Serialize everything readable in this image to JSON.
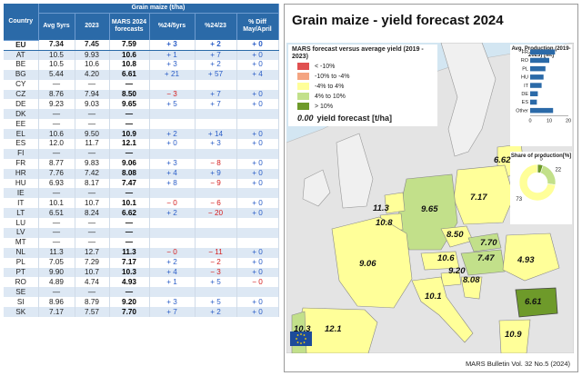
{
  "table": {
    "header_group": "Grain maize (t/ha)",
    "columns": [
      "Country",
      "Avg 5yrs",
      "2023",
      "MARS 2024 forecasts",
      "%24/5yrs",
      "%24/23",
      "% Diff May/April"
    ],
    "rows": [
      {
        "c": "EU",
        "avg": "7.34",
        "y23": "7.45",
        "f": "7.59",
        "p5": "+ 3",
        "p23": "+ 2",
        "d": "+ 0"
      },
      {
        "c": "AT",
        "avg": "10.5",
        "y23": "9.93",
        "f": "10.6",
        "p5": "+ 1",
        "p23": "+ 7",
        "d": "+ 0"
      },
      {
        "c": "BE",
        "avg": "10.5",
        "y23": "10.6",
        "f": "10.8",
        "p5": "+ 3",
        "p23": "+ 2",
        "d": "+ 0"
      },
      {
        "c": "BG",
        "avg": "5.44",
        "y23": "4.20",
        "f": "6.61",
        "p5": "+ 21",
        "p23": "+ 57",
        "d": "+ 4"
      },
      {
        "c": "CY",
        "avg": "—",
        "y23": "—",
        "f": "—",
        "p5": "",
        "p23": "",
        "d": ""
      },
      {
        "c": "CZ",
        "avg": "8.76",
        "y23": "7.94",
        "f": "8.50",
        "p5": "− 3",
        "p23": "+ 7",
        "d": "+ 0"
      },
      {
        "c": "DE",
        "avg": "9.23",
        "y23": "9.03",
        "f": "9.65",
        "p5": "+ 5",
        "p23": "+ 7",
        "d": "+ 0"
      },
      {
        "c": "DK",
        "avg": "—",
        "y23": "—",
        "f": "—",
        "p5": "",
        "p23": "",
        "d": ""
      },
      {
        "c": "EE",
        "avg": "—",
        "y23": "—",
        "f": "—",
        "p5": "",
        "p23": "",
        "d": ""
      },
      {
        "c": "EL",
        "avg": "10.6",
        "y23": "9.50",
        "f": "10.9",
        "p5": "+ 2",
        "p23": "+ 14",
        "d": "+ 0"
      },
      {
        "c": "ES",
        "avg": "12.0",
        "y23": "11.7",
        "f": "12.1",
        "p5": "+ 0",
        "p23": "+ 3",
        "d": "+ 0"
      },
      {
        "c": "FI",
        "avg": "—",
        "y23": "—",
        "f": "—",
        "p5": "",
        "p23": "",
        "d": ""
      },
      {
        "c": "FR",
        "avg": "8.77",
        "y23": "9.83",
        "f": "9.06",
        "p5": "+ 3",
        "p23": "− 8",
        "d": "+ 0"
      },
      {
        "c": "HR",
        "avg": "7.76",
        "y23": "7.42",
        "f": "8.08",
        "p5": "+ 4",
        "p23": "+ 9",
        "d": "+ 0"
      },
      {
        "c": "HU",
        "avg": "6.93",
        "y23": "8.17",
        "f": "7.47",
        "p5": "+ 8",
        "p23": "− 9",
        "d": "+ 0"
      },
      {
        "c": "IE",
        "avg": "—",
        "y23": "—",
        "f": "—",
        "p5": "",
        "p23": "",
        "d": ""
      },
      {
        "c": "IT",
        "avg": "10.1",
        "y23": "10.7",
        "f": "10.1",
        "p5": "− 0",
        "p23": "− 6",
        "d": "+ 0"
      },
      {
        "c": "LT",
        "avg": "6.51",
        "y23": "8.24",
        "f": "6.62",
        "p5": "+ 2",
        "p23": "− 20",
        "d": "+ 0"
      },
      {
        "c": "LU",
        "avg": "—",
        "y23": "—",
        "f": "—",
        "p5": "",
        "p23": "",
        "d": ""
      },
      {
        "c": "LV",
        "avg": "—",
        "y23": "—",
        "f": "—",
        "p5": "",
        "p23": "",
        "d": ""
      },
      {
        "c": "MT",
        "avg": "—",
        "y23": "—",
        "f": "—",
        "p5": "",
        "p23": "",
        "d": ""
      },
      {
        "c": "NL",
        "avg": "11.3",
        "y23": "12.7",
        "f": "11.3",
        "p5": "− 0",
        "p23": "− 11",
        "d": "+ 0"
      },
      {
        "c": "PL",
        "avg": "7.05",
        "y23": "7.29",
        "f": "7.17",
        "p5": "+ 2",
        "p23": "− 2",
        "d": "+ 0"
      },
      {
        "c": "PT",
        "avg": "9.90",
        "y23": "10.7",
        "f": "10.3",
        "p5": "+ 4",
        "p23": "− 3",
        "d": "+ 0"
      },
      {
        "c": "RO",
        "avg": "4.89",
        "y23": "4.74",
        "f": "4.93",
        "p5": "+ 1",
        "p23": "+ 5",
        "d": "− 0"
      },
      {
        "c": "SE",
        "avg": "—",
        "y23": "—",
        "f": "—",
        "p5": "",
        "p23": "",
        "d": ""
      },
      {
        "c": "SI",
        "avg": "8.96",
        "y23": "8.79",
        "f": "9.20",
        "p5": "+ 3",
        "p23": "+ 5",
        "d": "+ 0"
      },
      {
        "c": "SK",
        "avg": "7.17",
        "y23": "7.57",
        "f": "7.70",
        "p5": "+ 7",
        "p23": "+ 2",
        "d": "+ 0"
      }
    ]
  },
  "map": {
    "title": "Grain maize - yield forecast 2024",
    "legend_title": "MARS forecast versus average yield (2019 - 2023)",
    "legend_items": [
      {
        "label": "< -10%",
        "color": "#e05050"
      },
      {
        "label": "-10% to -4%",
        "color": "#f4a582"
      },
      {
        "label": "-4% to 4%",
        "color": "#ffff99"
      },
      {
        "label": "4% to 10%",
        "color": "#c2e08a"
      },
      {
        "label": "> 10%",
        "color": "#6e9a2a"
      }
    ],
    "legend_yield_num": "0.00",
    "legend_yield_label": "yield forecast [t/ha]",
    "values": [
      "6.62",
      "11.3",
      "10.8",
      "9.65",
      "7.17",
      "8.50",
      "7.70",
      "10.6",
      "7.47",
      "9.20",
      "8.08",
      "4.93",
      "9.06",
      "10.1",
      "6.61",
      "10.3",
      "12.1",
      "10.9"
    ],
    "footer": "MARS Bulletin Vol. 32 No.5 (2024)"
  },
  "production_chart": {
    "title": "Avg. Production (2019-2023) [Mt]",
    "categories": [
      "FR",
      "RO",
      "PL",
      "HU",
      "IT",
      "DE",
      "ES",
      "Other"
    ],
    "values": [
      13,
      10,
      8,
      7,
      6,
      4,
      3.5,
      12
    ],
    "x_ticks": [
      "0",
      "10",
      "20"
    ]
  },
  "share_chart": {
    "title": "Share of production[%]",
    "slices": [
      {
        "label": "5",
        "value": 5,
        "color": "#6e9a2a"
      },
      {
        "label": "22",
        "value": 22,
        "color": "#c2e08a"
      },
      {
        "label": "73",
        "value": 73,
        "color": "#ffff99"
      }
    ]
  },
  "chart_data": [
    {
      "type": "bar",
      "title": "Avg. Production (2019-2023) [Mt]",
      "categories": [
        "FR",
        "RO",
        "PL",
        "HU",
        "IT",
        "DE",
        "ES",
        "Other"
      ],
      "values": [
        13,
        10,
        8,
        7,
        6,
        4,
        3.5,
        12
      ],
      "xlim": [
        0,
        20
      ]
    },
    {
      "type": "pie",
      "title": "Share of production[%]",
      "categories": [
        "5",
        "22",
        "73"
      ],
      "values": [
        5,
        22,
        73
      ]
    }
  ]
}
